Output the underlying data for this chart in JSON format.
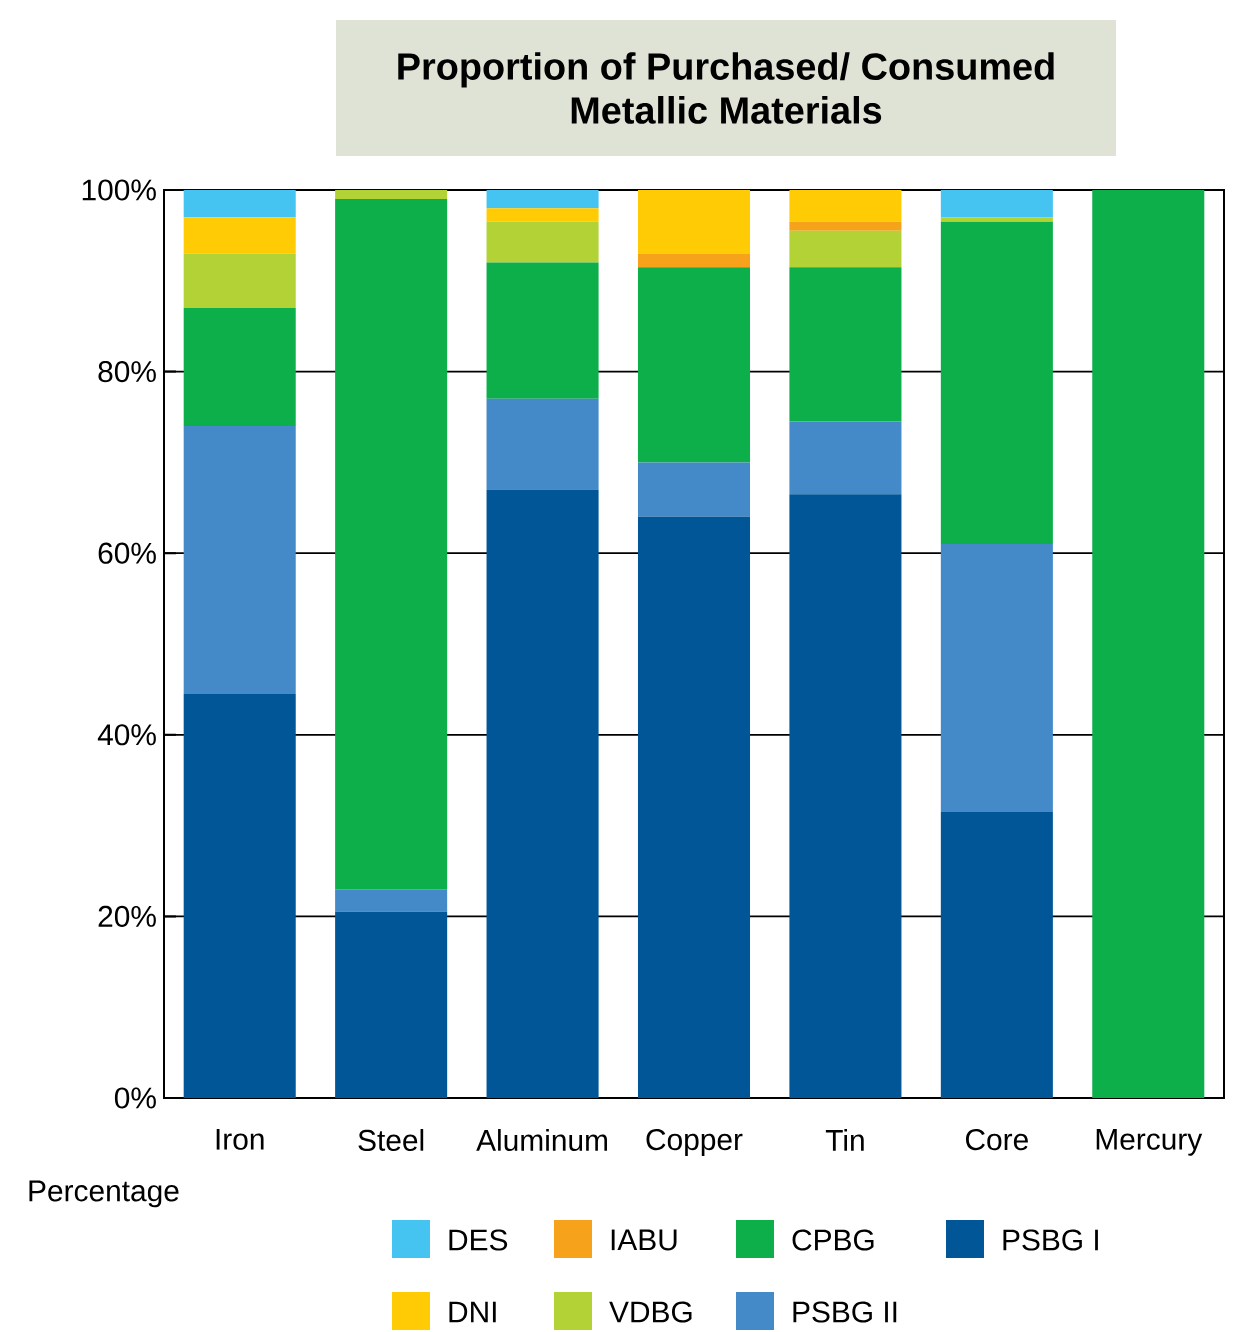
{
  "chart_data": {
    "type": "bar",
    "stacked": true,
    "title": "Proportion of Purchased/ Consumed Metallic Materials",
    "annotations": [
      "Percentage"
    ],
    "categories": [
      "Iron",
      "Steel",
      "Aluminum",
      "Copper",
      "Tin",
      "Core",
      "Mercury"
    ],
    "series": [
      {
        "name": "PSBG I",
        "color": "#005696",
        "values": [
          44.5,
          20.5,
          67,
          64,
          66.5,
          31.5,
          0
        ]
      },
      {
        "name": "PSBG II",
        "color": "#4489c8",
        "values": [
          29.5,
          2.5,
          10,
          6,
          8,
          29.5,
          0
        ]
      },
      {
        "name": "CPBG",
        "color": "#0daf4b",
        "values": [
          13,
          76,
          15,
          21.5,
          17,
          35.5,
          100
        ]
      },
      {
        "name": "VDBG",
        "color": "#b2d235",
        "values": [
          6,
          1,
          4.5,
          0,
          4,
          0.5,
          0
        ]
      },
      {
        "name": "IABU",
        "color": "#f7a21b",
        "values": [
          0,
          0,
          0,
          1.5,
          1,
          0,
          0
        ]
      },
      {
        "name": "DNI",
        "color": "#ffcb05",
        "values": [
          4,
          0,
          1.5,
          7,
          3.5,
          0,
          0
        ]
      },
      {
        "name": "DES",
        "color": "#45c4f2",
        "values": [
          3,
          0,
          2,
          0,
          0,
          3,
          0
        ]
      }
    ],
    "ylim": [
      0,
      100
    ],
    "yticks": [
      {
        "value": 0,
        "label": "0%"
      },
      {
        "value": 20,
        "label": "20%"
      },
      {
        "value": 40,
        "label": "40%"
      },
      {
        "value": 60,
        "label": "60%"
      },
      {
        "value": 80,
        "label": "80%"
      },
      {
        "value": 100,
        "label": "100%"
      }
    ],
    "grid": "y",
    "legend": "bottom"
  }
}
